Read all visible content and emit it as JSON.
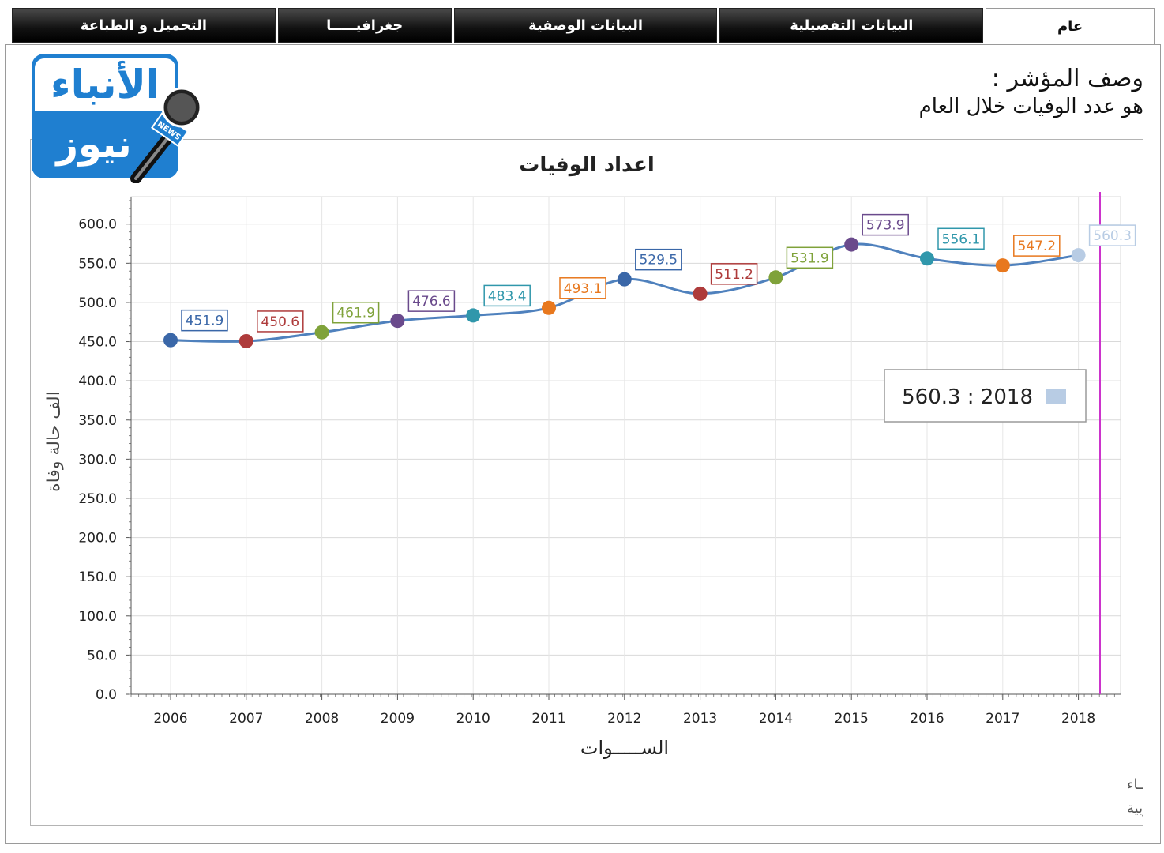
{
  "tabs": [
    {
      "label": "عام",
      "active": true
    },
    {
      "label": "البيانات التفصيلية",
      "active": false
    },
    {
      "label": "البيانات الوصفية",
      "active": false
    },
    {
      "label": "جغرافيـــــا",
      "active": false
    },
    {
      "label": "التحميل و الطباعة",
      "active": false
    }
  ],
  "indicator": {
    "title": "وصف المؤشر :",
    "description": "هو عدد الوفيات خلال العام"
  },
  "logo": {
    "top_text": "الأنباء",
    "bottom_text": "نيوز",
    "badge": "NEWS",
    "color": "#1f7fd0"
  },
  "tooltip": {
    "text": "560.3 : 2018",
    "swatch_color": "#b8cce4"
  },
  "footer": {
    "line1": "حقوق الملكية للجهـــاز المركزي للتعبئة العـامة والأحصــــاء",
    "line2": "المصدر الأساسـي للأحصاءات الرسـمية لجمهورية مصر العربية"
  },
  "chart_data": {
    "type": "line",
    "title": "اعداد الوفيات",
    "xlabel": "الســـــوات",
    "ylabel": "الف حالة وفاة",
    "categories": [
      "2006",
      "2007",
      "2008",
      "2009",
      "2010",
      "2011",
      "2012",
      "2013",
      "2014",
      "2015",
      "2016",
      "2017",
      "2018"
    ],
    "values": [
      451.9,
      450.6,
      461.9,
      476.6,
      483.4,
      493.1,
      529.5,
      511.2,
      531.9,
      573.9,
      556.1,
      547.2,
      560.3
    ],
    "value_labels": [
      "451.9",
      "450.6",
      "461.9",
      "476.6",
      "483.4",
      "493.1",
      "529.5",
      "511.2",
      "531.9",
      "573.9",
      "556.1",
      "547.2",
      "560.3"
    ],
    "point_colors": [
      "#3a67a8",
      "#ae3b3b",
      "#7fa23a",
      "#6a4a8c",
      "#3097ab",
      "#e8781e",
      "#3a67a8",
      "#ae3b3b",
      "#7fa23a",
      "#6a4a8c",
      "#3097ab",
      "#e8781e",
      "#b8cce4"
    ],
    "line_color": "#4f81bd",
    "marker_line_color": "#cc33cc",
    "ylim": [
      0,
      635
    ],
    "yticks": [
      0,
      50,
      100,
      150,
      200,
      250,
      300,
      350,
      400,
      450,
      500,
      550,
      600
    ],
    "ytick_labels": [
      "0.0",
      "50.0",
      "100.0",
      "150.0",
      "200.0",
      "250.0",
      "300.0",
      "350.0",
      "400.0",
      "450.0",
      "500.0",
      "550.0",
      "600.0"
    ],
    "grid": true,
    "legend": "none"
  }
}
